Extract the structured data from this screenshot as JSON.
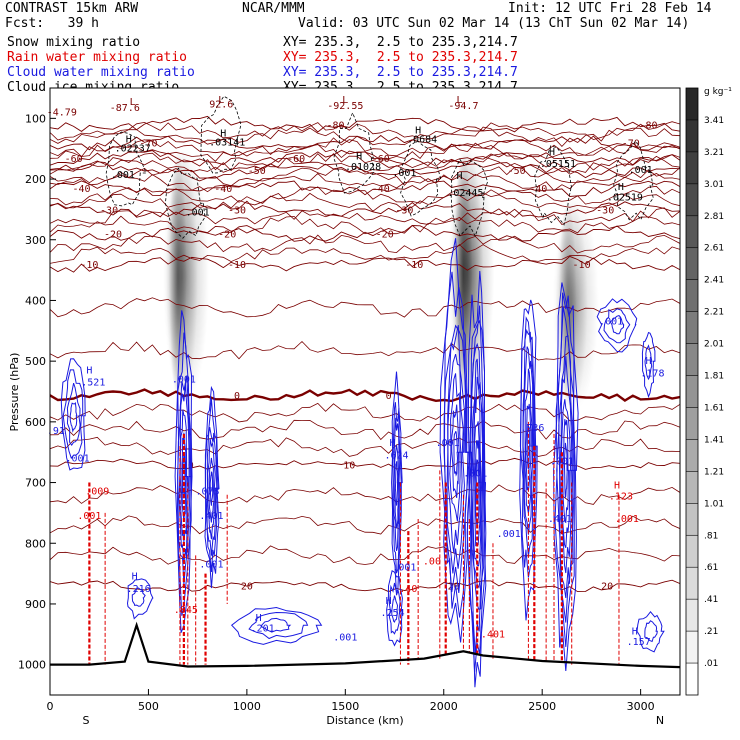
{
  "header": {
    "model": "CONTRAST 15km ARW",
    "org": "NCAR/MMM",
    "init": "Init: 12 UTC Fri 28 Feb 14",
    "fcst": "Fcst:   39 h",
    "valid": "Valid: 03 UTC Sun 02 Mar 14 (13 ChT Sun 02 Mar 14)",
    "fields": [
      {
        "name": "Snow mixing ratio",
        "xy": "XY= 235.3,  2.5 to 235.3,214.7",
        "color": "#000000"
      },
      {
        "name": "Rain water mixing ratio",
        "xy": "XY= 235.3,  2.5 to 235.3,214.7",
        "color": "#e00000"
      },
      {
        "name": "Cloud water mixing ratio",
        "xy": "XY= 235.3,  2.5 to 235.3,214.7",
        "color": "#1a1ae0"
      },
      {
        "name": "Cloud ice mixing ratio",
        "xy": "XY= 235.3,  2.5 to 235.3,214.7",
        "color": "#000000"
      }
    ]
  },
  "chart_data": {
    "type": "heatmap",
    "xlabel": "Distance (km)",
    "ylabel": "Pressure (hPa)",
    "xlim": [
      0,
      3200
    ],
    "ylim": [
      1050,
      50
    ],
    "x_ticks": [
      0,
      500,
      1000,
      1500,
      2000,
      2500,
      3000
    ],
    "y_ticks": [
      100,
      200,
      300,
      400,
      500,
      600,
      700,
      800,
      900,
      1000
    ],
    "x_end_labels": {
      "left": "S",
      "right": "N"
    },
    "colorbar": {
      "unit": "g kg⁻¹",
      "ticks": [
        "3.41",
        "3.21",
        "3.01",
        "2.81",
        "2.61",
        "2.41",
        "2.21",
        "2.01",
        "1.81",
        "1.61",
        "1.41",
        "1.21",
        "1.01",
        ".81",
        ".61",
        ".41",
        ".21",
        ".01"
      ]
    },
    "temperature_contours": {
      "color": "#7a0000",
      "levels": [
        -80,
        -70,
        -60,
        -50,
        -40,
        -30,
        -20,
        -10,
        0,
        10,
        20
      ],
      "label_text": [
        "-80",
        "-80",
        "-70",
        "-70",
        "-60",
        "-60",
        "-60",
        "-50",
        "-50",
        "-40",
        "-40",
        "-40",
        "-40",
        "-30",
        "-30",
        "-30",
        "-30",
        "-20",
        "-20",
        "-20",
        "-10",
        "-10",
        "-10",
        "-10",
        "0",
        "0",
        "10",
        "10",
        "20",
        "20",
        "20"
      ]
    },
    "terrain_profile": {
      "x": [
        0,
        200,
        380,
        440,
        500,
        700,
        1000,
        1500,
        1900,
        2100,
        2200,
        2500,
        3000,
        3200
      ],
      "p": [
        1000,
        1000,
        995,
        935,
        995,
        1003,
        1002,
        998,
        990,
        978,
        985,
        994,
        1002,
        1004
      ]
    },
    "snow_columns": [
      {
        "x": 670,
        "p_top": 150,
        "p_bottom": 570,
        "intensity": 0.75
      },
      {
        "x": 2120,
        "p_top": 150,
        "p_bottom": 560,
        "intensity": 0.95
      },
      {
        "x": 2650,
        "p_top": 230,
        "p_bottom": 580,
        "intensity": 0.6
      }
    ],
    "annotations": [
      {
        "text": "L",
        "x": 420,
        "p": 78,
        "color": "#7a0000"
      },
      {
        "text": "-87.6",
        "x": 380,
        "p": 88,
        "color": "#7a0000"
      },
      {
        "text": "L",
        "x": 870,
        "p": 75,
        "color": "#7a0000"
      },
      {
        "text": "92.6",
        "x": 870,
        "p": 82,
        "color": "#7a0000"
      },
      {
        "text": "L",
        "x": 1500,
        "p": 75,
        "color": "#7a0000"
      },
      {
        "text": "-92.55",
        "x": 1500,
        "p": 85,
        "color": "#7a0000"
      },
      {
        "text": "L",
        "x": 2080,
        "p": 75,
        "color": "#7a0000"
      },
      {
        "text": "-94.7",
        "x": 2100,
        "p": 85,
        "color": "#7a0000"
      },
      {
        "text": "-4.79",
        "x": 60,
        "p": 95,
        "color": "#7a0000"
      },
      {
        "text": "H",
        "x": 400,
        "p": 140,
        "color": "#000000"
      },
      {
        "text": ".02237",
        "x": 420,
        "p": 155,
        "color": "#000000"
      },
      {
        "text": "H",
        "x": 880,
        "p": 130,
        "color": "#000000"
      },
      {
        "text": ".03141",
        "x": 900,
        "p": 145,
        "color": "#000000"
      },
      {
        "text": "H",
        "x": 1570,
        "p": 168,
        "color": "#000000"
      },
      {
        "text": ".01028",
        "x": 1590,
        "p": 185,
        "color": "#000000"
      },
      {
        "text": "H",
        "x": 1870,
        "p": 125,
        "color": "#000000"
      },
      {
        "text": ".0684",
        "x": 1890,
        "p": 140,
        "color": "#000000"
      },
      {
        "text": "H",
        "x": 2080,
        "p": 200,
        "color": "#000000"
      },
      {
        "text": ".02445",
        "x": 2110,
        "p": 228,
        "color": "#000000"
      },
      {
        "text": "H",
        "x": 2550,
        "p": 160,
        "color": "#000000"
      },
      {
        "text": ".05151",
        "x": 2580,
        "p": 180,
        "color": "#000000"
      },
      {
        "text": "H",
        "x": 2900,
        "p": 218,
        "color": "#000000"
      },
      {
        "text": ".02519",
        "x": 2920,
        "p": 235,
        "color": "#000000"
      },
      {
        "text": ".001",
        "x": 370,
        "p": 198,
        "color": "#000000"
      },
      {
        "text": ".001",
        "x": 750,
        "p": 260,
        "color": "#000000"
      },
      {
        "text": ".001",
        "x": 1800,
        "p": 195,
        "color": "#000000"
      },
      {
        "text": ".001",
        "x": 3000,
        "p": 190,
        "color": "#000000"
      },
      {
        "text": "H",
        "x": 200,
        "p": 520,
        "color": "#1a1ae0"
      },
      {
        "text": ".521",
        "x": 220,
        "p": 540,
        "color": "#1a1ae0"
      },
      {
        "text": ".001",
        "x": 680,
        "p": 535,
        "color": "#1a1ae0"
      },
      {
        "text": ".91",
        "x": 30,
        "p": 620,
        "color": "#1a1ae0"
      },
      {
        "text": ".001",
        "x": 140,
        "p": 665,
        "color": "#1a1ae0"
      },
      {
        "text": ".009",
        "x": 240,
        "p": 720,
        "color": "#e00000"
      },
      {
        "text": ".001",
        "x": 200,
        "p": 760,
        "color": "#e00000"
      },
      {
        "text": ".073",
        "x": 800,
        "p": 720,
        "color": "#1a1ae0"
      },
      {
        "text": ".401",
        "x": 820,
        "p": 760,
        "color": "#1a1ae0"
      },
      {
        "text": ".001",
        "x": 820,
        "p": 840,
        "color": "#1a1ae0"
      },
      {
        "text": "H",
        "x": 430,
        "p": 860,
        "color": "#1a1ae0"
      },
      {
        "text": ".216",
        "x": 450,
        "p": 880,
        "color": "#1a1ae0"
      },
      {
        "text": ".845",
        "x": 690,
        "p": 915,
        "color": "#e00000"
      },
      {
        "text": "H",
        "x": 1060,
        "p": 928,
        "color": "#1a1ae0"
      },
      {
        "text": ".201",
        "x": 1080,
        "p": 945,
        "color": "#1a1ae0"
      },
      {
        "text": ".001",
        "x": 1500,
        "p": 960,
        "color": "#1a1ae0"
      },
      {
        "text": "H",
        "x": 1740,
        "p": 640,
        "color": "#1a1ae0"
      },
      {
        "text": ".624",
        "x": 1760,
        "p": 660,
        "color": "#1a1ae0"
      },
      {
        "text": ".001",
        "x": 1800,
        "p": 845,
        "color": "#1a1ae0"
      },
      {
        "text": "H",
        "x": 1720,
        "p": 900,
        "color": "#1a1ae0"
      },
      {
        "text": ".254",
        "x": 1740,
        "p": 920,
        "color": "#1a1ae0"
      },
      {
        "text": ".001",
        "x": 2160,
        "p": 690,
        "color": "#1a1ae0"
      },
      {
        "text": ".001",
        "x": 2330,
        "p": 790,
        "color": "#1a1ae0"
      },
      {
        "text": ".001",
        "x": 2020,
        "p": 640,
        "color": "#1a1ae0"
      },
      {
        "text": ".401",
        "x": 2250,
        "p": 955,
        "color": "#e00000"
      },
      {
        "text": ".40",
        "x": 1820,
        "p": 880,
        "color": "#e00000"
      },
      {
        "text": ".00",
        "x": 1940,
        "p": 835,
        "color": "#e00000"
      },
      {
        "text": ".736",
        "x": 2450,
        "p": 615,
        "color": "#1a1ae0"
      },
      {
        "text": ".401",
        "x": 2590,
        "p": 765,
        "color": "#1a1ae0"
      },
      {
        "text": ".001",
        "x": 2600,
        "p": 670,
        "color": "#1a1ae0"
      },
      {
        "text": ".001",
        "x": 2850,
        "p": 440,
        "color": "#1a1ae0"
      },
      {
        "text": "H",
        "x": 3040,
        "p": 505,
        "color": "#1a1ae0"
      },
      {
        "text": ".178",
        "x": 3060,
        "p": 525,
        "color": "#1a1ae0"
      },
      {
        "text": "H",
        "x": 2880,
        "p": 710,
        "color": "#e00000"
      },
      {
        "text": ".123",
        "x": 2900,
        "p": 728,
        "color": "#e00000"
      },
      {
        "text": ".001",
        "x": 2930,
        "p": 765,
        "color": "#e00000"
      },
      {
        "text": "H",
        "x": 2970,
        "p": 950,
        "color": "#1a1ae0"
      },
      {
        "text": ".157",
        "x": 2990,
        "p": 968,
        "color": "#1a1ae0"
      }
    ]
  }
}
